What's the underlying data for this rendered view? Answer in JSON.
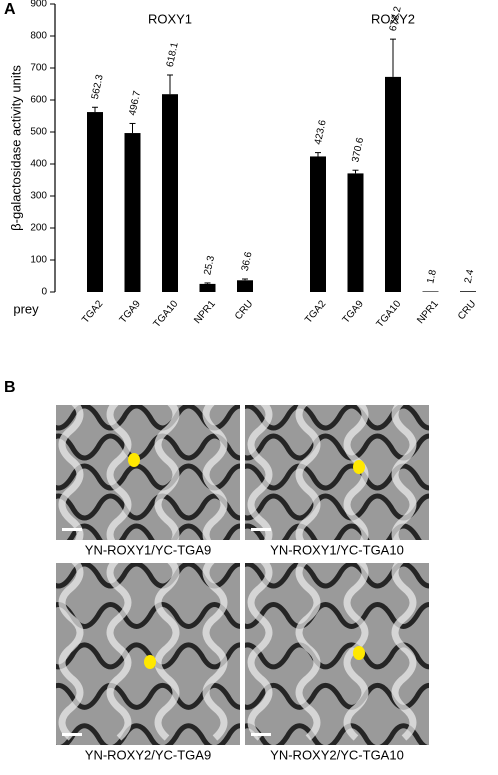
{
  "panel_labels": [
    "A",
    "B"
  ],
  "chart_data": {
    "type": "bar",
    "y_label": "β-galactosidase activity units",
    "x_label": "prey",
    "categories": [
      "TGA2",
      "TGA9",
      "TGA10",
      "NPR1",
      "CRU"
    ],
    "series": [
      {
        "name": "ROXY1",
        "color": "#000000",
        "values": [
          562.3,
          496.7,
          618.1,
          25.3,
          36.6
        ],
        "errors": [
          15,
          30,
          60,
          3,
          4
        ]
      },
      {
        "name": "ROXY2",
        "color": "#000000",
        "values": [
          423.6,
          370.6,
          672.2,
          1.8,
          2.4
        ],
        "errors": [
          12,
          10,
          118,
          0,
          0
        ]
      }
    ],
    "ylim": [
      0,
      900
    ],
    "yticks": [
      0,
      100,
      200,
      300,
      400,
      500,
      600,
      700,
      800,
      900
    ],
    "grid": false
  },
  "images": [
    {
      "caption": "YN-ROXY1/YC-TGA9"
    },
    {
      "caption": "YN-ROXY1/YC-TGA10"
    },
    {
      "caption": "YN-ROXY2/YC-TGA9"
    },
    {
      "caption": "YN-ROXY2/YC-TGA10"
    }
  ]
}
